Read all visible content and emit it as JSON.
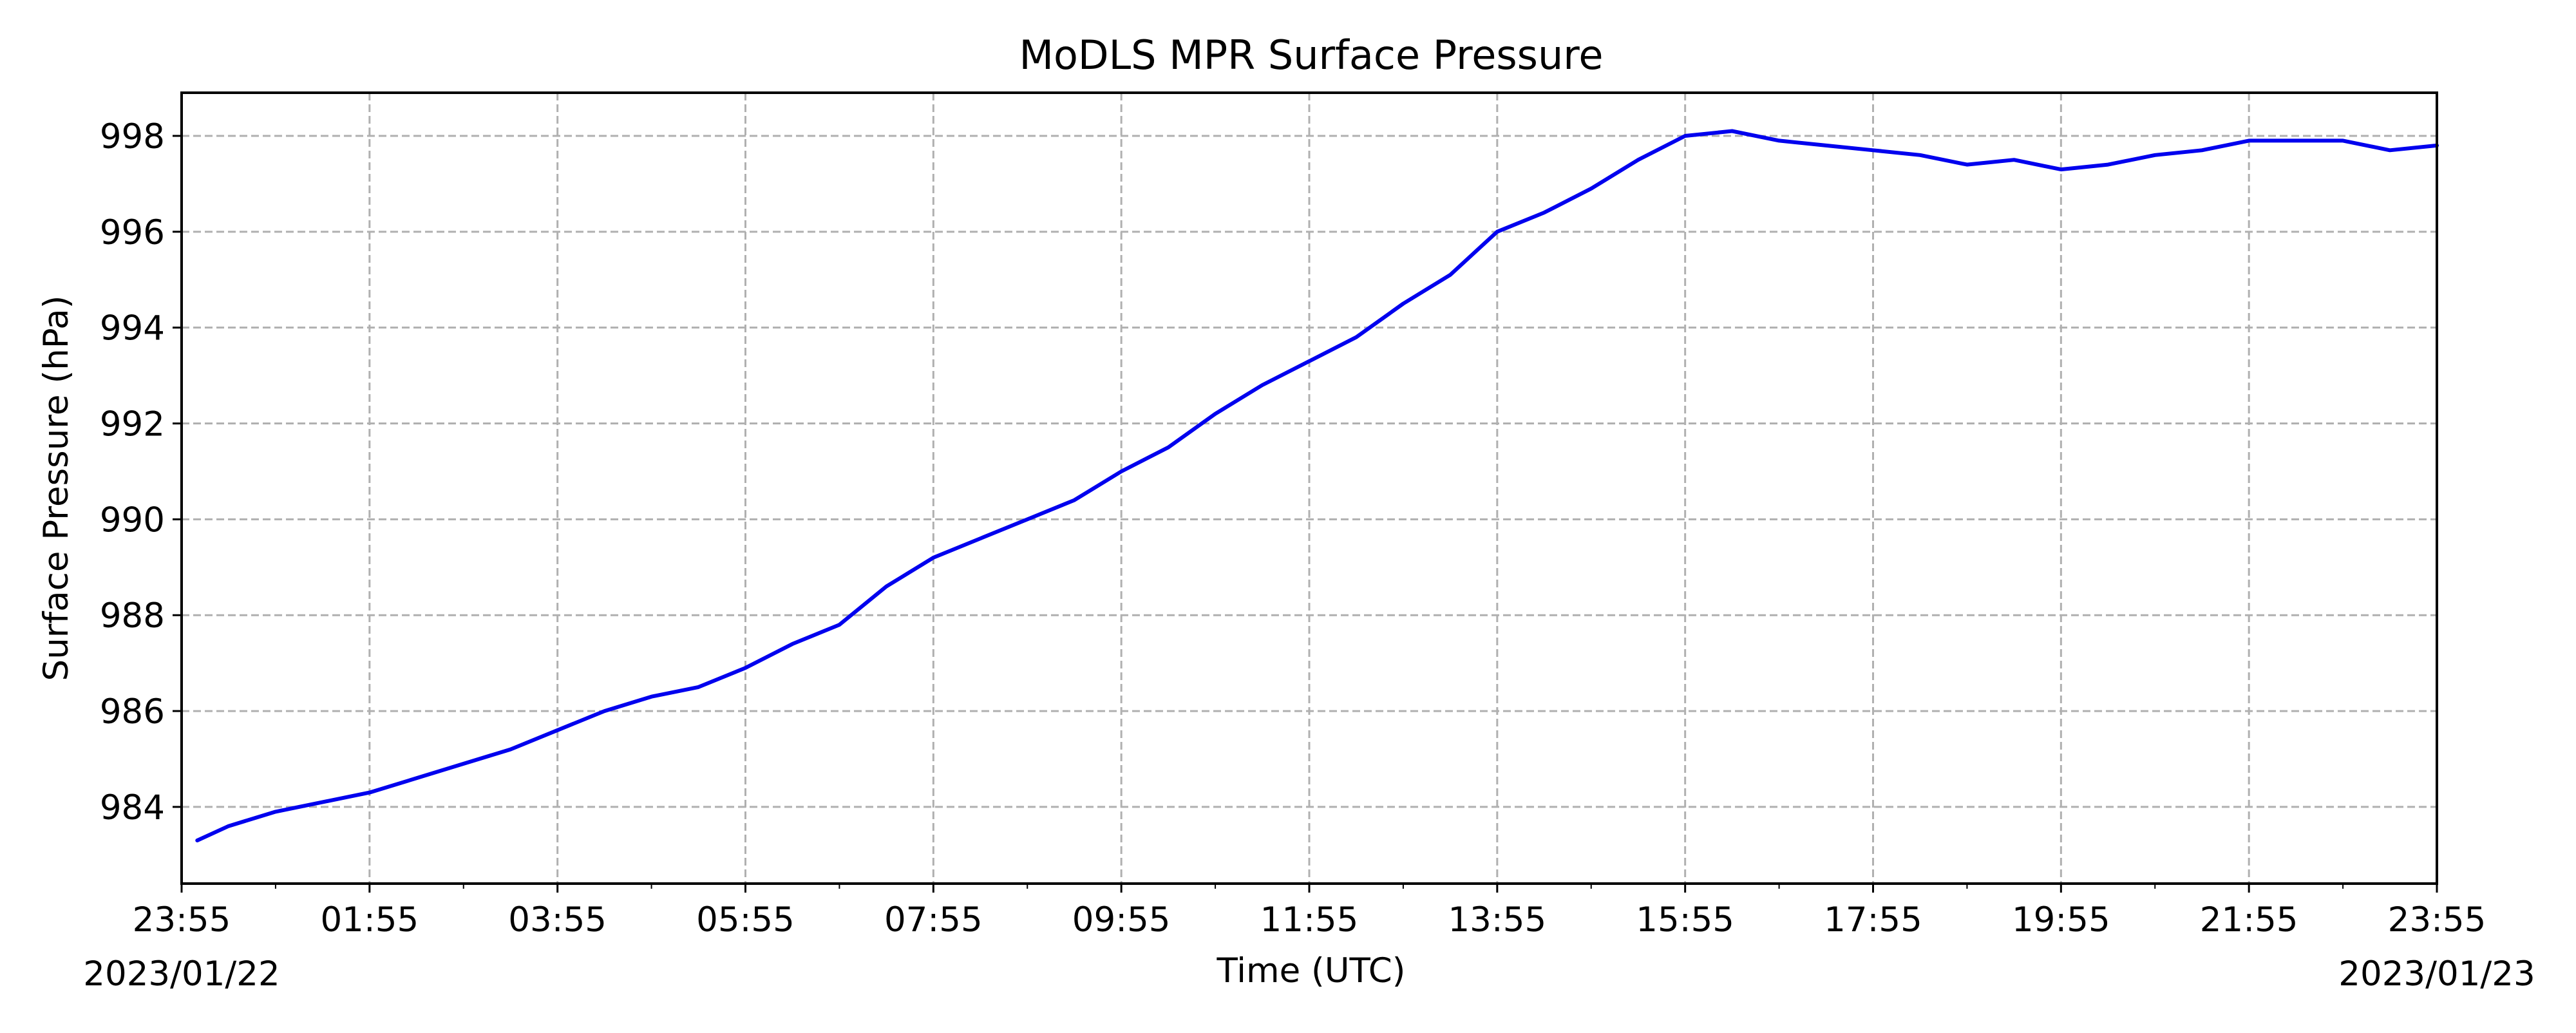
{
  "chart_data": {
    "type": "line",
    "title": "MoDLS MPR Surface Pressure",
    "xlabel": "Time (UTC)",
    "ylabel": "Surface Pressure (hPa)",
    "x_tick_labels": [
      "23:55",
      "01:55",
      "03:55",
      "05:55",
      "07:55",
      "09:55",
      "11:55",
      "13:55",
      "15:55",
      "17:55",
      "19:55",
      "21:55",
      "23:55"
    ],
    "x_start_date": "2023/01/22",
    "x_end_date": "2023/01/23",
    "y_ticks": [
      984,
      986,
      988,
      990,
      992,
      994,
      996,
      998
    ],
    "ylim": [
      982.4,
      998.9
    ],
    "grid": true,
    "series": [
      {
        "color": "#0000ee",
        "x": [
          "2023-01-23 00:05",
          "2023-01-23 00:25",
          "2023-01-23 00:55",
          "2023-01-23 01:10",
          "2023-01-23 01:55",
          "2023-01-23 02:25",
          "2023-01-23 02:55",
          "2023-01-23 03:25",
          "2023-01-23 03:55",
          "2023-01-23 04:25",
          "2023-01-23 04:55",
          "2023-01-23 05:25",
          "2023-01-23 05:55",
          "2023-01-23 06:25",
          "2023-01-23 06:55",
          "2023-01-23 07:25",
          "2023-01-23 07:55",
          "2023-01-23 08:25",
          "2023-01-23 08:55",
          "2023-01-23 09:25",
          "2023-01-23 09:55",
          "2023-01-23 10:25",
          "2023-01-23 10:55",
          "2023-01-23 11:25",
          "2023-01-23 11:55",
          "2023-01-23 12:25",
          "2023-01-23 12:55",
          "2023-01-23 13:25",
          "2023-01-23 13:55",
          "2023-01-23 14:25",
          "2023-01-23 14:55",
          "2023-01-23 15:25",
          "2023-01-23 15:55",
          "2023-01-23 16:25",
          "2023-01-23 16:55",
          "2023-01-23 17:25",
          "2023-01-23 17:55",
          "2023-01-23 18:25",
          "2023-01-23 18:55",
          "2023-01-23 19:25",
          "2023-01-23 19:55",
          "2023-01-23 20:25",
          "2023-01-23 20:55",
          "2023-01-23 21:25",
          "2023-01-23 21:55",
          "2023-01-23 22:25",
          "2023-01-23 22:55",
          "2023-01-23 23:25",
          "2023-01-23 23:55"
        ],
        "y": [
          983.3,
          983.6,
          983.9,
          984.0,
          984.3,
          984.6,
          984.9,
          985.2,
          985.6,
          986.0,
          986.3,
          986.5,
          986.9,
          987.4,
          987.8,
          988.6,
          989.2,
          989.6,
          990.0,
          990.4,
          991.0,
          991.5,
          992.2,
          992.8,
          993.3,
          993.8,
          994.5,
          995.1,
          996.0,
          996.4,
          996.9,
          997.5,
          998.0,
          998.1,
          997.9,
          997.8,
          997.7,
          997.6,
          997.4,
          997.5,
          997.3,
          997.4,
          997.6,
          997.7,
          997.9,
          997.9,
          997.9,
          997.7,
          997.8
        ]
      }
    ]
  }
}
